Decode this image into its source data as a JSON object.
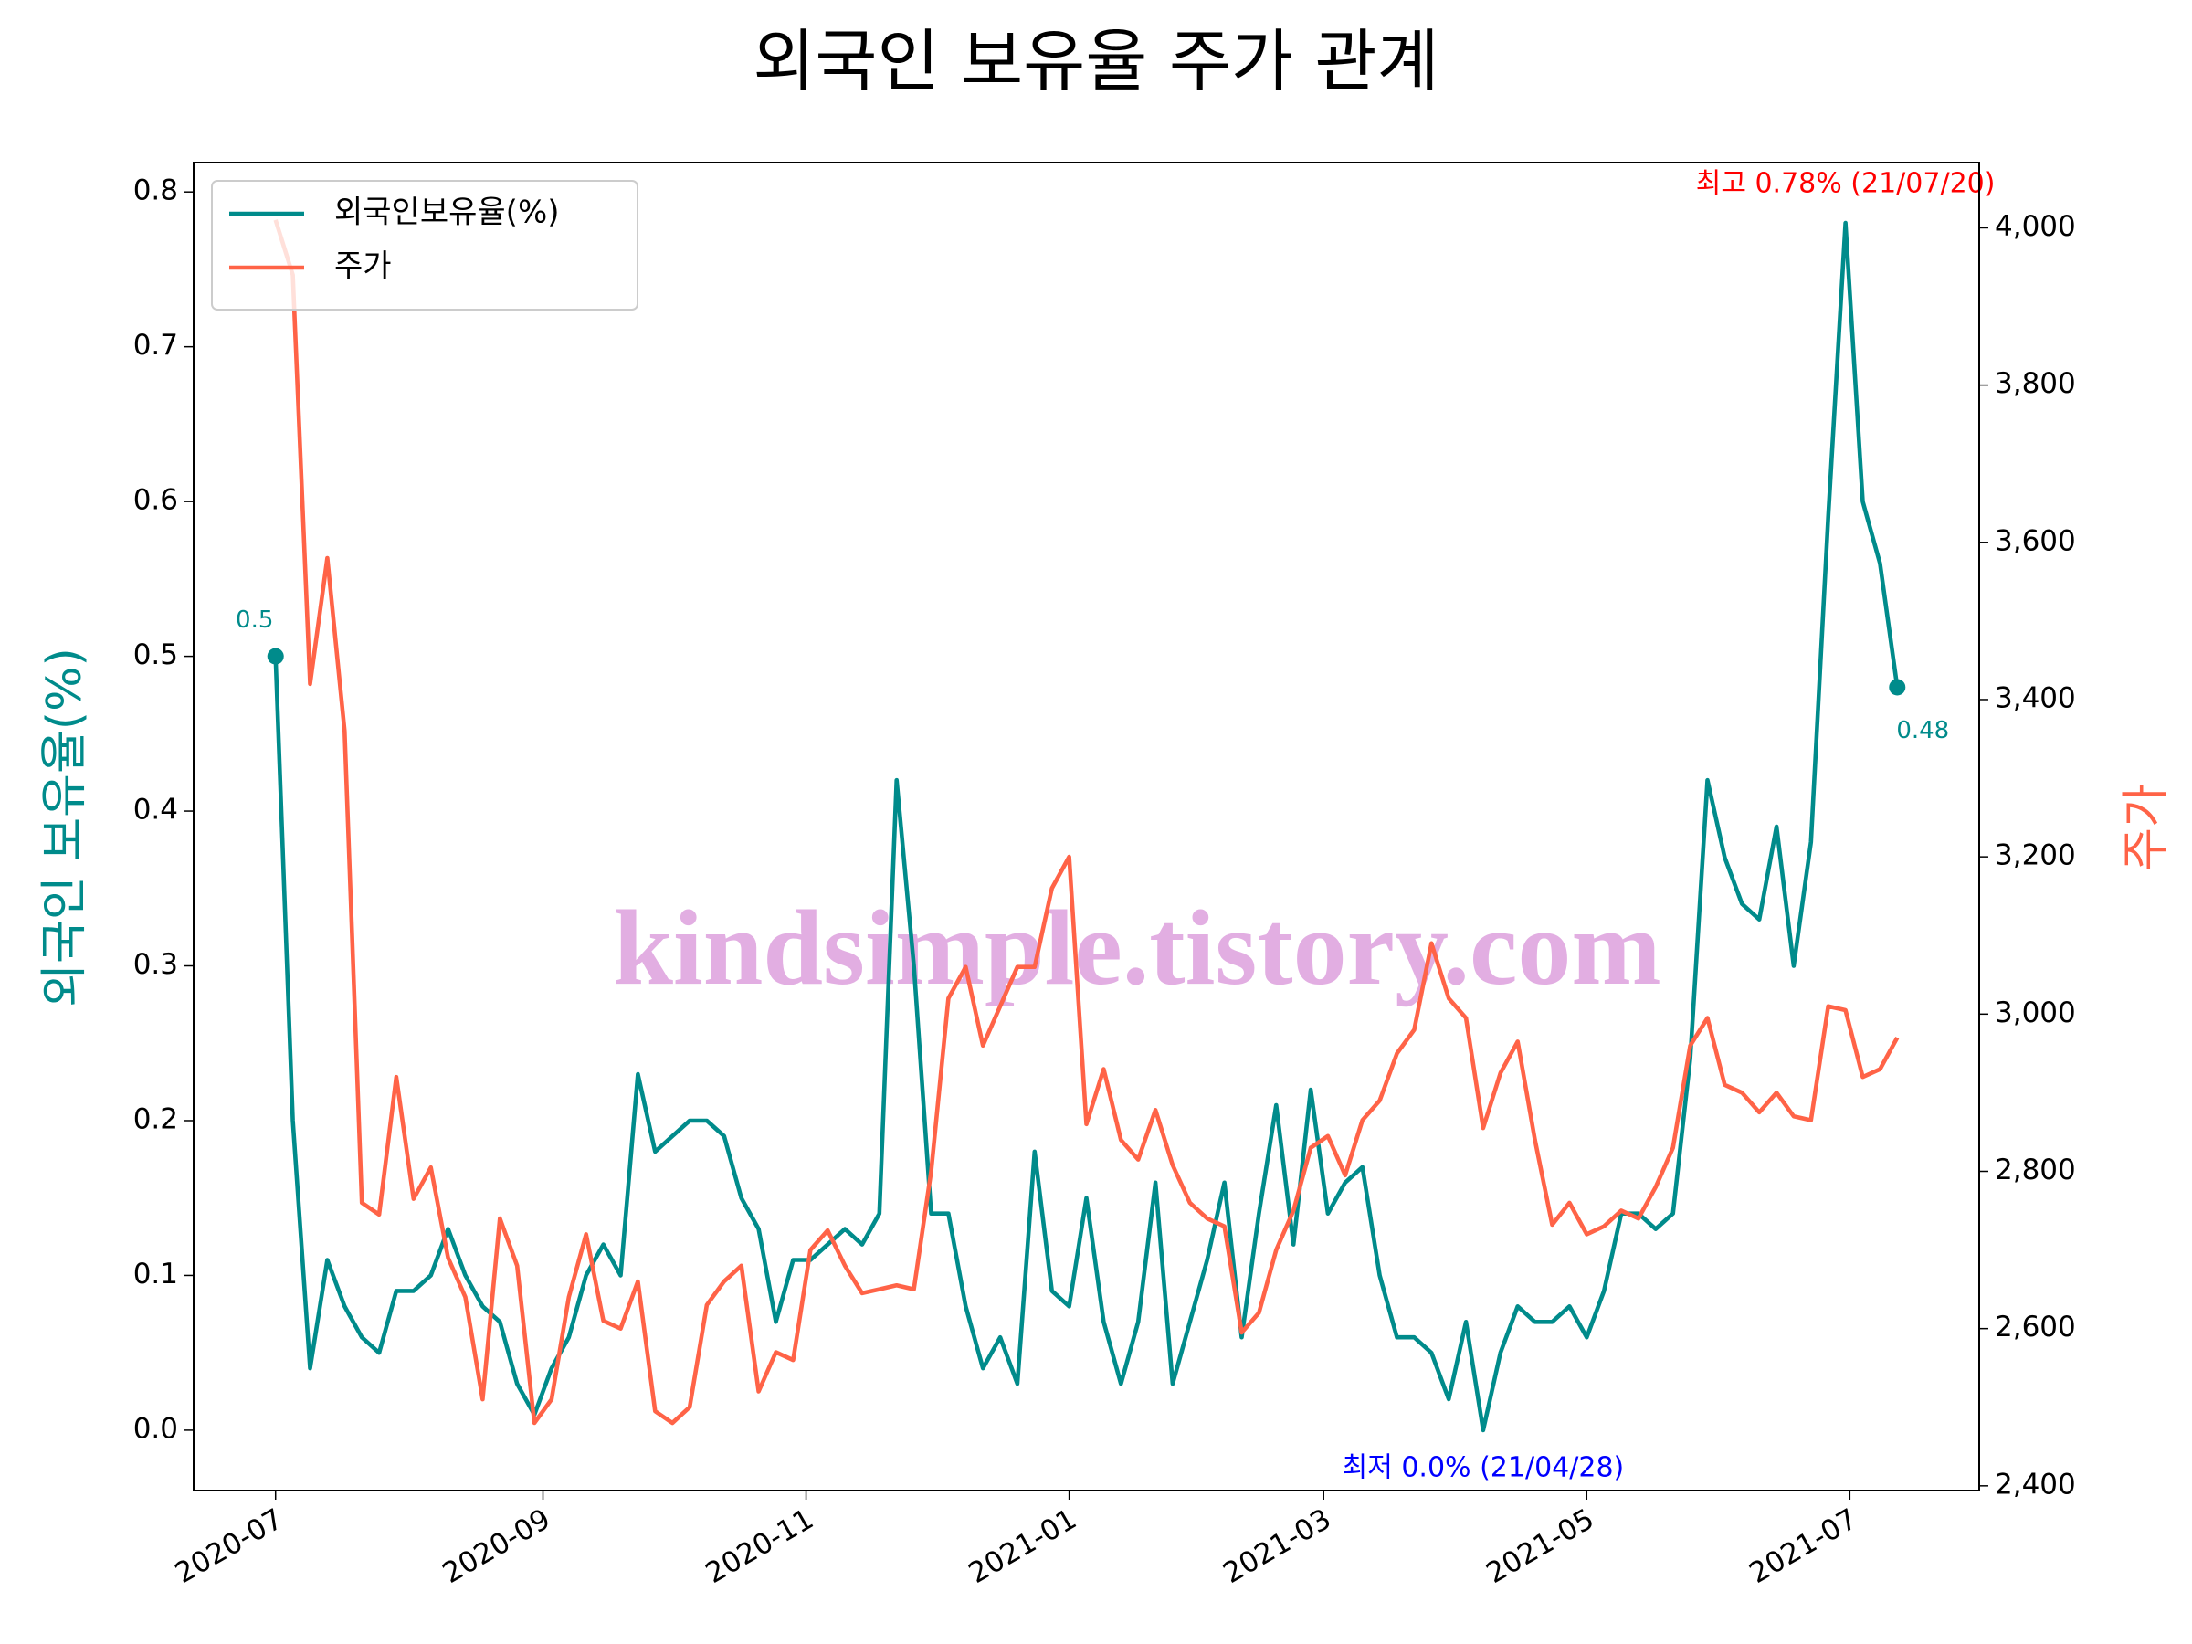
{
  "chart_data": {
    "type": "line",
    "title": "외국인 보유율 주가 관계",
    "y_label": "외국인 보유율(%)",
    "y2_label": "주가",
    "watermark": "kindsimple.tistory.com",
    "legend": "upper left",
    "x": [
      "2020-07-01",
      "2020-07-05",
      "2020-07-09",
      "2020-07-13",
      "2020-07-17",
      "2020-07-21",
      "2020-07-25",
      "2020-07-29",
      "2020-08-02",
      "2020-08-06",
      "2020-08-10",
      "2020-08-14",
      "2020-08-18",
      "2020-08-22",
      "2020-08-26",
      "2020-08-30",
      "2020-09-03",
      "2020-09-07",
      "2020-09-11",
      "2020-09-15",
      "2020-09-19",
      "2020-09-23",
      "2020-09-27",
      "2020-10-01",
      "2020-10-05",
      "2020-10-09",
      "2020-10-13",
      "2020-10-17",
      "2020-10-21",
      "2020-10-25",
      "2020-10-29",
      "2020-11-02",
      "2020-11-06",
      "2020-11-10",
      "2020-11-14",
      "2020-11-18",
      "2020-11-22",
      "2020-11-26",
      "2020-11-30",
      "2020-12-04",
      "2020-12-08",
      "2020-12-12",
      "2020-12-16",
      "2020-12-20",
      "2020-12-24",
      "2020-12-28",
      "2021-01-01",
      "2021-01-05",
      "2021-01-09",
      "2021-01-13",
      "2021-01-17",
      "2021-01-21",
      "2021-01-25",
      "2021-01-29",
      "2021-02-02",
      "2021-02-06",
      "2021-02-10",
      "2021-02-14",
      "2021-02-18",
      "2021-02-22",
      "2021-02-26",
      "2021-03-02",
      "2021-03-06",
      "2021-03-10",
      "2021-03-14",
      "2021-03-18",
      "2021-03-22",
      "2021-03-26",
      "2021-03-30",
      "2021-04-03",
      "2021-04-07",
      "2021-04-11",
      "2021-04-15",
      "2021-04-19",
      "2021-04-23",
      "2021-04-27",
      "2021-05-01",
      "2021-05-05",
      "2021-05-09",
      "2021-05-13",
      "2021-05-17",
      "2021-05-21",
      "2021-05-25",
      "2021-05-29",
      "2021-06-02",
      "2021-06-06",
      "2021-06-10",
      "2021-06-14",
      "2021-06-18",
      "2021-06-22",
      "2021-06-26",
      "2021-06-30",
      "2021-07-04",
      "2021-07-08",
      "2021-07-12"
    ],
    "series": [
      {
        "name": "외국인보유율(%)",
        "color": "#008b8b",
        "axis": "y",
        "values": [
          0.5,
          0.2,
          0.04,
          0.11,
          0.08,
          0.06,
          0.05,
          0.09,
          0.09,
          0.1,
          0.13,
          0.1,
          0.08,
          0.07,
          0.03,
          0.01,
          0.04,
          0.06,
          0.1,
          0.12,
          0.1,
          0.23,
          0.18,
          0.19,
          0.2,
          0.2,
          0.19,
          0.15,
          0.13,
          0.07,
          0.11,
          0.11,
          0.12,
          0.13,
          0.12,
          0.14,
          0.42,
          0.3,
          0.14,
          0.14,
          0.08,
          0.04,
          0.06,
          0.03,
          0.18,
          0.09,
          0.08,
          0.15,
          0.07,
          0.03,
          0.07,
          0.16,
          0.03,
          0.07,
          0.11,
          0.16,
          0.06,
          0.14,
          0.21,
          0.12,
          0.22,
          0.14,
          0.16,
          0.17,
          0.1,
          0.06,
          0.06,
          0.05,
          0.02,
          0.07,
          0.0,
          0.05,
          0.08,
          0.07,
          0.07,
          0.08,
          0.06,
          0.09,
          0.14,
          0.14,
          0.13,
          0.14,
          0.24,
          0.42,
          0.37,
          0.34,
          0.33,
          0.39,
          0.3,
          0.38,
          0.59,
          0.78,
          0.6,
          0.56,
          0.48
        ],
        "value_labels": [
          "0.5",
          null,
          null,
          null,
          null,
          null,
          null,
          null,
          null,
          null,
          null,
          null,
          null,
          null,
          null,
          null,
          null,
          null,
          null,
          null,
          null,
          null,
          null,
          null,
          null,
          null,
          null,
          null,
          null,
          null,
          null,
          null,
          null,
          null,
          null,
          null,
          null,
          null,
          null,
          null,
          null,
          null,
          null,
          null,
          null,
          null,
          null,
          null,
          null,
          null,
          null,
          null,
          null,
          null,
          null,
          null,
          null,
          null,
          null,
          null,
          null,
          null,
          null,
          null,
          null,
          null,
          null,
          null,
          null,
          null,
          null,
          null,
          null,
          null,
          null,
          null,
          null,
          null,
          null,
          null,
          null,
          null,
          null,
          null,
          null,
          null,
          null,
          null,
          null,
          null,
          null,
          null,
          null,
          null,
          "0.48"
        ]
      },
      {
        "name": "주가",
        "color": "#ff6347",
        "axis": "y2",
        "values": [
          4010,
          3940,
          3420,
          3580,
          3360,
          2760,
          2745,
          2920,
          2765,
          2805,
          2690,
          2640,
          2510,
          2740,
          2680,
          2480,
          2510,
          2640,
          2720,
          2610,
          2600,
          2660,
          2495,
          2480,
          2500,
          2630,
          2660,
          2680,
          2520,
          2570,
          2560,
          2700,
          2725,
          2680,
          2645,
          2650,
          2655,
          2650,
          2800,
          3020,
          3060,
          2960,
          3010,
          3060,
          3060,
          3160,
          3200,
          2860,
          2930,
          2840,
          2815,
          2878,
          2808,
          2760,
          2740,
          2730,
          2595,
          2620,
          2700,
          2750,
          2830,
          2845,
          2795,
          2865,
          2890,
          2950,
          2980,
          3090,
          3020,
          2995,
          2855,
          2925,
          2965,
          2840,
          2732,
          2760,
          2720,
          2730,
          2750,
          2740,
          2780,
          2830,
          2960,
          2995,
          2910,
          2900,
          2875,
          2900,
          2870,
          2865,
          3010,
          3005,
          2920,
          2930,
          2970
        ]
      }
    ],
    "annotations": [
      {
        "text": "최고 0.78% (21/07/20)",
        "color": "#ff0000",
        "at": "max"
      },
      {
        "text": "최저 0.0% (21/04/28)",
        "color": "#0000ff",
        "at": "min"
      }
    ],
    "xlim": [
      "2020-06-12",
      "2021-07-31"
    ],
    "xticks": [
      {
        "value": "2020-07-01",
        "label": "2020-07"
      },
      {
        "value": "2020-09-01",
        "label": "2020-09"
      },
      {
        "value": "2020-11-01",
        "label": "2020-11"
      },
      {
        "value": "2021-01-01",
        "label": "2021-01"
      },
      {
        "value": "2021-03-01",
        "label": "2021-03"
      },
      {
        "value": "2021-05-01",
        "label": "2021-05"
      },
      {
        "value": "2021-07-01",
        "label": "2021-07"
      }
    ],
    "ylim": [
      -0.039,
      0.819
    ],
    "yticks": [
      {
        "value": 0,
        "label": "0.0"
      },
      0.1,
      0.2,
      0.3,
      0.4,
      0.5,
      0.6,
      0.7,
      0.8
    ],
    "y2lim": [
      2394,
      4083
    ],
    "y2ticks": [
      {
        "value": 2400,
        "label": "2,400"
      },
      {
        "value": 2600,
        "label": "2,600"
      },
      {
        "value": 2800,
        "label": "2,800"
      },
      {
        "value": 3000,
        "label": "3,000"
      },
      {
        "value": 3200,
        "label": "3,200"
      },
      {
        "value": 3400,
        "label": "3,400"
      },
      {
        "value": 3600,
        "label": "3,600"
      },
      {
        "value": 3800,
        "label": "3,800"
      },
      {
        "value": 4000,
        "label": "4,000"
      }
    ],
    "grid": false
  }
}
